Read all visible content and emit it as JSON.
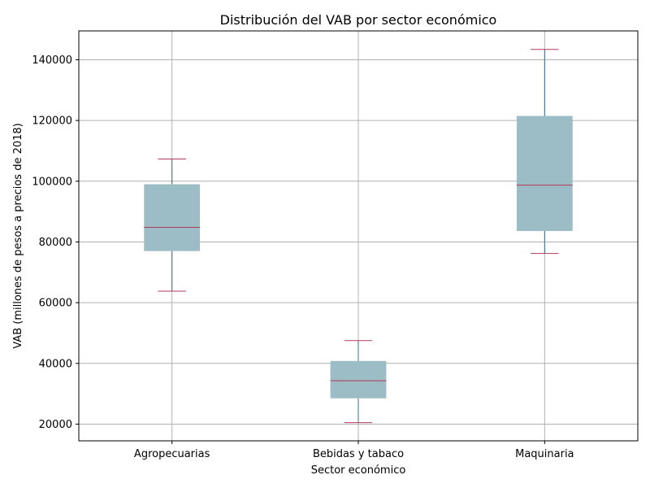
{
  "chart_data": {
    "type": "box",
    "title": "Distribución del VAB por sector económico",
    "xlabel": "Sector económico",
    "ylabel": "VAB (millones de pesos a precios de 2018)",
    "categories": [
      "Agropecuarias",
      "Bebidas y tabaco",
      "Maquinaria"
    ],
    "ylim": [
      14500,
      149500
    ],
    "yticks": [
      20000,
      40000,
      60000,
      80000,
      100000,
      120000,
      140000
    ],
    "ytick_labels": [
      "20000",
      "40000",
      "60000",
      "80000",
      "100000",
      "120000",
      "140000"
    ],
    "grid": true,
    "boxes": [
      {
        "category": "Agropecuarias",
        "whisker_low": 63800,
        "q1": 77000,
        "median": 84800,
        "q3": 99000,
        "whisker_high": 107300
      },
      {
        "category": "Bebidas y tabaco",
        "whisker_low": 20500,
        "q1": 28500,
        "median": 34300,
        "q3": 40800,
        "whisker_high": 47500
      },
      {
        "category": "Maquinaria",
        "whisker_low": 76200,
        "q1": 83600,
        "median": 98700,
        "q3": 121500,
        "whisker_high": 143400
      }
    ],
    "colors": {
      "box_fill": "#9dbdc6",
      "whisker": "#3a6f8e",
      "median": "#b03a5b",
      "cap": "#b03a5b",
      "grid": "#b0b0b0"
    }
  }
}
